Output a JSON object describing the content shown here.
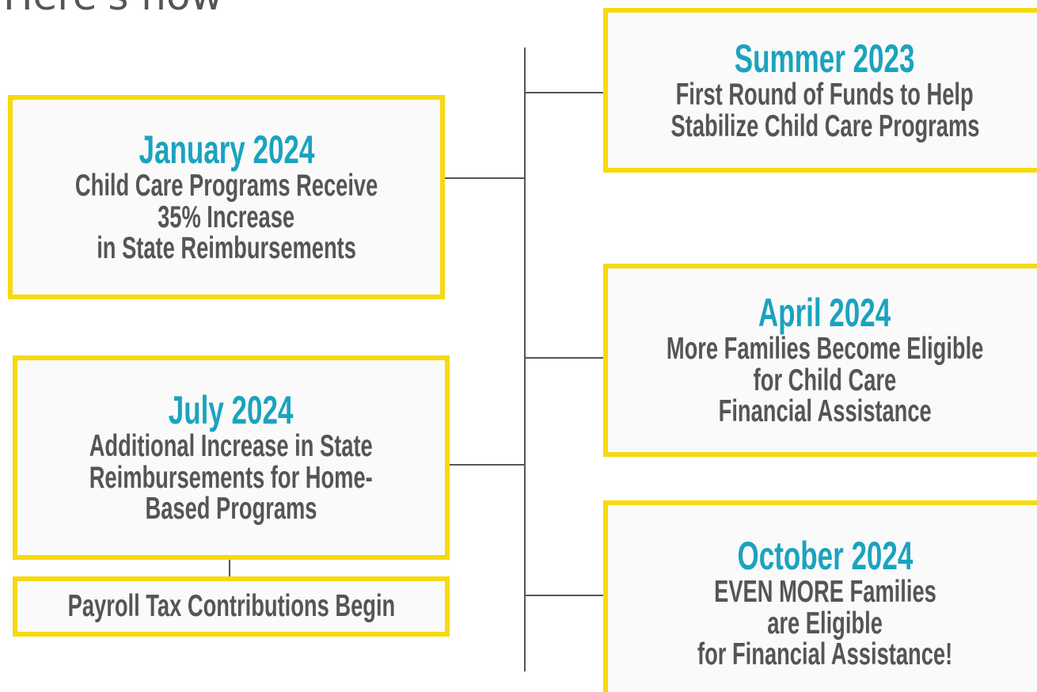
{
  "title": "Here's how",
  "events": [
    {
      "date": "Summer 2023",
      "lines": [
        "First Round of Funds to Help",
        "Stabilize Child Care Programs"
      ]
    },
    {
      "date": "January 2024",
      "lines": [
        "Child Care Programs Receive",
        "35% Increase",
        "in State Reimbursements"
      ]
    },
    {
      "date": "April 2024",
      "lines": [
        "More Families Become Eligible",
        "for Child Care",
        "Financial Assistance"
      ]
    },
    {
      "date": "July 2024",
      "lines": [
        "Additional Increase in State",
        "Reimbursements for Home-",
        "Based Programs"
      ]
    },
    {
      "date": "October 2024",
      "lines": [
        "EVEN MORE Families",
        "are Eligible",
        "for Financial Assistance!"
      ]
    }
  ],
  "note": "Payroll Tax Contributions Begin"
}
